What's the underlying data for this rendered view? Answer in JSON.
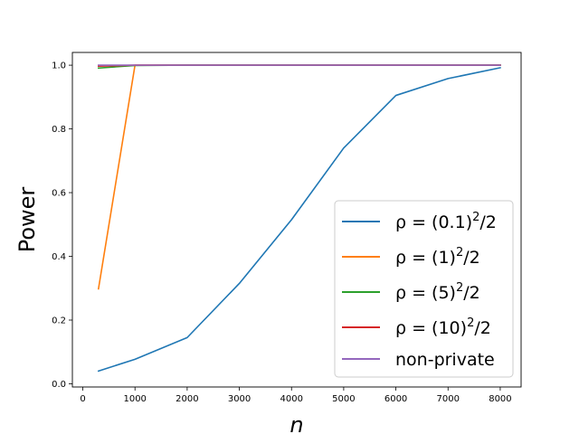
{
  "chart_data": {
    "type": "line",
    "xlabel": "n",
    "ylabel": "Power",
    "xlim": [
      -200,
      8400
    ],
    "ylim": [
      -0.01,
      1.04
    ],
    "xticks": [
      0,
      1000,
      2000,
      3000,
      4000,
      5000,
      6000,
      7000,
      8000
    ],
    "xtick_labels": [
      "0",
      "1000",
      "2000",
      "3000",
      "4000",
      "5000",
      "6000",
      "7000",
      "8000"
    ],
    "yticks": [
      0.0,
      0.2,
      0.4,
      0.6,
      0.8,
      1.0
    ],
    "ytick_labels": [
      "0.0",
      "0.2",
      "0.4",
      "0.6",
      "0.8",
      "1.0"
    ],
    "grid": false,
    "legend_position": "lower-right",
    "series": [
      {
        "name": "ρ = (0.1)²/2",
        "legend": {
          "base": "ρ = (0.1)",
          "sup": "2",
          "tail": "/2"
        },
        "color": "#1f77b4",
        "x": [
          300,
          1000,
          2000,
          3000,
          4000,
          5000,
          6000,
          7000,
          8000
        ],
        "y": [
          0.04,
          0.077,
          0.145,
          0.315,
          0.515,
          0.74,
          0.905,
          0.958,
          0.992
        ]
      },
      {
        "name": "ρ = (1)²/2",
        "legend": {
          "base": "ρ = (1)",
          "sup": "2",
          "tail": "/2"
        },
        "color": "#ff7f0e",
        "x": [
          300,
          1000,
          2000,
          3000,
          4000,
          5000,
          6000,
          7000,
          8000
        ],
        "y": [
          0.298,
          1.0,
          1.0,
          1.0,
          1.0,
          1.0,
          1.0,
          1.0,
          1.0
        ]
      },
      {
        "name": "ρ = (5)²/2",
        "legend": {
          "base": "ρ = (5)",
          "sup": "2",
          "tail": "/2"
        },
        "color": "#2ca02c",
        "x": [
          300,
          1000,
          2000,
          3000,
          4000,
          5000,
          6000,
          7000,
          8000
        ],
        "y": [
          0.991,
          0.999,
          1.0,
          1.0,
          1.0,
          1.0,
          1.0,
          1.0,
          1.0
        ]
      },
      {
        "name": "ρ = (10)²/2",
        "legend": {
          "base": "ρ = (10)",
          "sup": "2",
          "tail": "/2"
        },
        "color": "#d62728",
        "x": [
          300,
          1000,
          2000,
          3000,
          4000,
          5000,
          6000,
          7000,
          8000
        ],
        "y": [
          0.997,
          1.0,
          1.0,
          1.0,
          1.0,
          1.0,
          1.0,
          1.0,
          1.0
        ]
      },
      {
        "name": "non-private",
        "legend": {
          "base": "non-private",
          "sup": "",
          "tail": ""
        },
        "color": "#9467bd",
        "x": [
          300,
          1000,
          2000,
          3000,
          4000,
          5000,
          6000,
          7000,
          8000
        ],
        "y": [
          1.0,
          1.0,
          1.0,
          1.0,
          1.0,
          1.0,
          1.0,
          1.0,
          1.0
        ]
      }
    ]
  }
}
